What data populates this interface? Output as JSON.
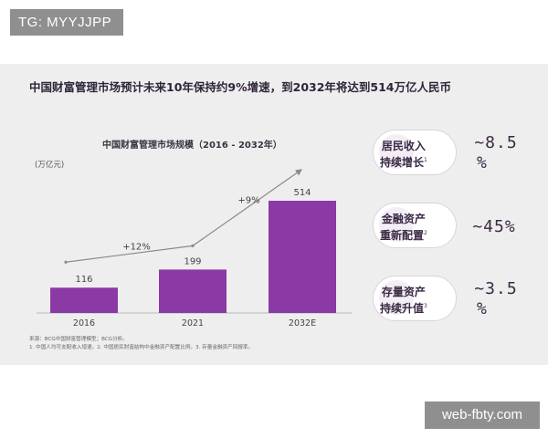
{
  "tg_badge": "TG: MYYJJPP",
  "headline": "中国财富管理市场预计未来10年保持约9%增速，到2032年将达到514万亿人民币",
  "chart_data": {
    "type": "bar",
    "title": "中国财富管理市场规模（2016 - 2032年）",
    "unit": "(万亿元)",
    "categories": [
      "2016",
      "2021",
      "2032E"
    ],
    "values": [
      116,
      199,
      514
    ],
    "value_labels": [
      "116",
      "199",
      "514"
    ],
    "growth_labels": [
      "+12%",
      "+9%"
    ],
    "bar_color": "#8b3aa5",
    "trend_color": "#8a8a8a",
    "grid": false
  },
  "notes": {
    "source": "来源：BCG中国财富管理模型；BCG分析。",
    "footnotes": "1. 中国人均可支配收入增速。2. 中国居民财富结构中金融资产配置比例。3. 存量金融资产回报率。"
  },
  "metrics": [
    {
      "label_line1": "居民收入",
      "label_line2": "持续增长",
      "sup": "1",
      "value_line1": "~8.5",
      "value_line2": "%",
      "icon": "income-icon"
    },
    {
      "label_line1": "金融资产",
      "label_line2": "重新配置",
      "sup": "2",
      "value_line1": "~45%",
      "value_line2": "",
      "icon": "allocation-icon"
    },
    {
      "label_line1": "存量资产",
      "label_line2": "持续升值",
      "sup": "3",
      "value_line1": "~3.5",
      "value_line2": "%",
      "icon": "appreciation-icon"
    }
  ],
  "watermark": "web-fbty.com"
}
